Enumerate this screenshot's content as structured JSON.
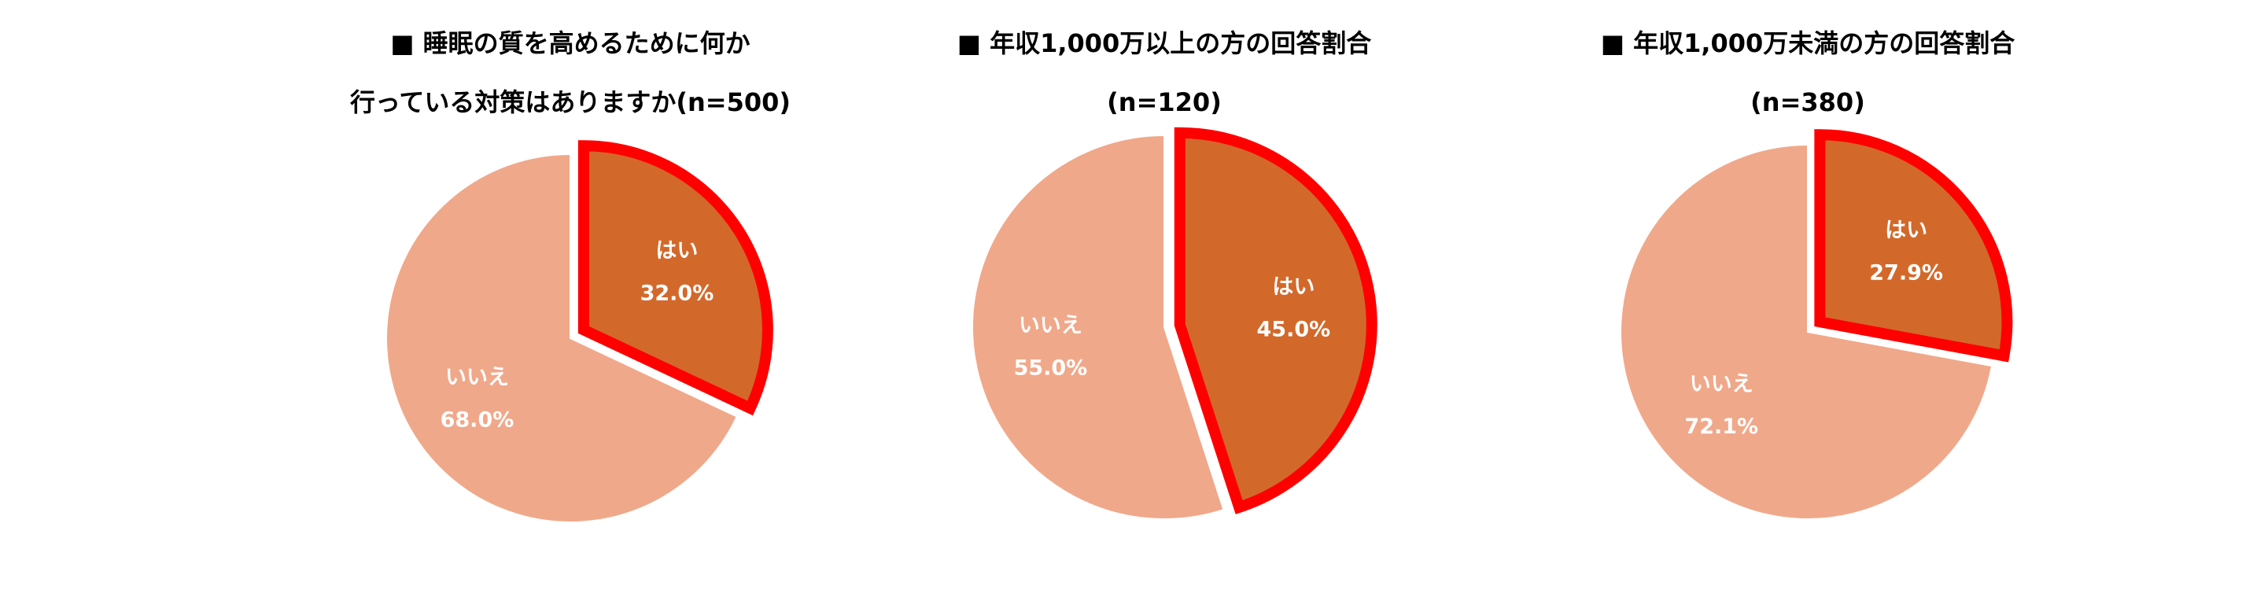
{
  "chart_data": [
    {
      "type": "pie",
      "title": [
        "■ 睡眠の質を高めるために何か",
        "行っている対策はありますか(n=500)"
      ],
      "categories": [
        "はい",
        "いいえ"
      ],
      "values": [
        32.0,
        68.0
      ],
      "value_labels": [
        "32.0%",
        "68.0%"
      ],
      "colors": [
        "#d2692b",
        "#f0a88a"
      ]
    },
    {
      "type": "pie",
      "title": [
        "■ 年収1,000万以上の方の回答割合",
        "(n=120)"
      ],
      "categories": [
        "はい",
        "いいえ"
      ],
      "values": [
        45.0,
        55.0
      ],
      "value_labels": [
        "45.0%",
        "55.0%"
      ],
      "colors": [
        "#d2692b",
        "#f0a88a"
      ]
    },
    {
      "type": "pie",
      "title": [
        "■ 年収1,000万未満の方の回答割合",
        "(n=380)"
      ],
      "categories": [
        "はい",
        "いいえ"
      ],
      "values": [
        27.9,
        72.1
      ],
      "value_labels": [
        "27.9%",
        "72.1%"
      ],
      "colors": [
        "#d2692b",
        "#f0a88a"
      ]
    }
  ]
}
